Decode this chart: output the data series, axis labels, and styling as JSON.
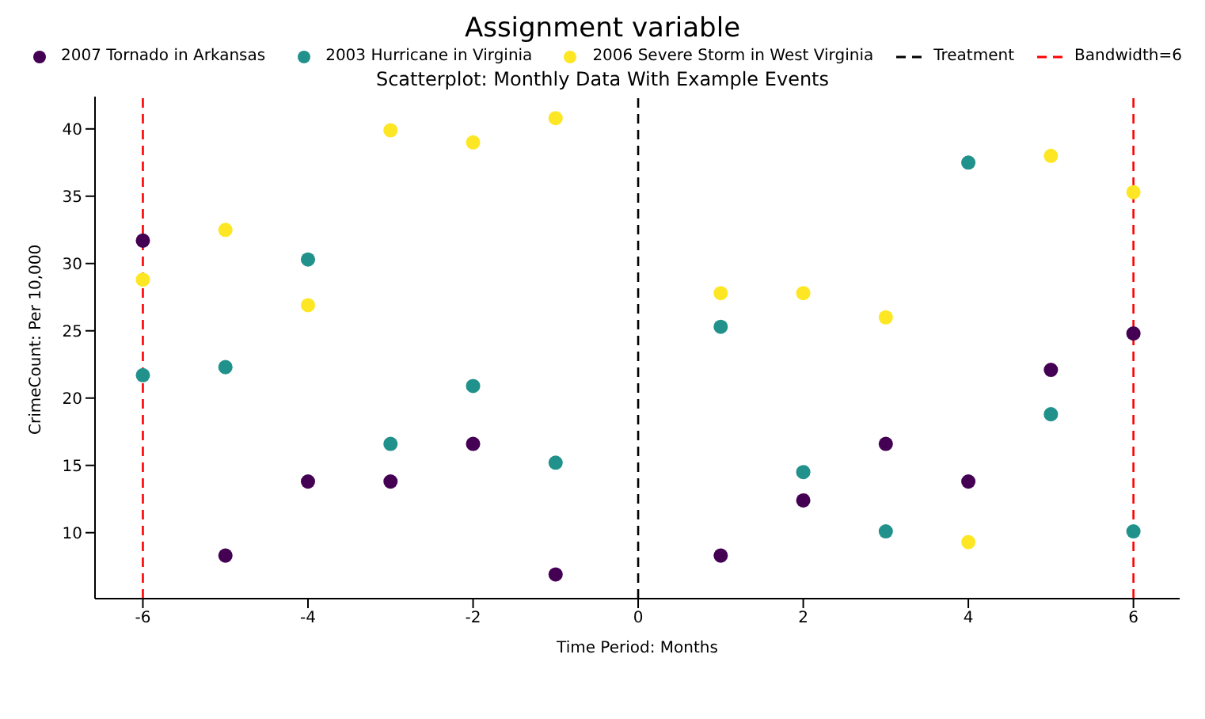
{
  "chart_data": {
    "type": "scatter",
    "title": "Assignment variable",
    "subtitle": "Scatterplot: Monthly Data With Example Events",
    "xlabel": "Time Period: Months",
    "ylabel": "CrimeCount: Per 10,000",
    "xlim": [
      -6.58,
      6.56
    ],
    "xticks": [
      -6,
      -4,
      -2,
      0,
      2,
      4,
      6
    ],
    "ylim": [
      5.1,
      42.4
    ],
    "yticks": [
      10,
      15,
      20,
      25,
      30,
      35,
      40
    ],
    "grid": false,
    "legend": "top",
    "marker": "circle",
    "x": [
      -6,
      -5,
      -4,
      -3,
      -2,
      -1,
      1,
      2,
      3,
      4,
      5,
      6
    ],
    "series": [
      {
        "name": "2007 Tornado in Arkansas",
        "color": "#440154",
        "values": [
          31.7,
          8.3,
          13.8,
          13.8,
          16.6,
          6.9,
          8.3,
          12.4,
          16.6,
          13.8,
          22.1,
          24.8
        ]
      },
      {
        "name": "2003 Hurricane in Virginia",
        "color": "#21918c",
        "values": [
          21.7,
          22.3,
          30.3,
          16.6,
          20.9,
          15.2,
          25.3,
          14.5,
          10.1,
          37.5,
          18.8,
          10.1
        ]
      },
      {
        "name": "2006 Severe Storm in West Virginia",
        "color": "#fde725",
        "values": [
          28.8,
          32.5,
          26.9,
          39.9,
          39.0,
          40.8,
          27.8,
          27.8,
          26.0,
          9.3,
          38.0,
          35.3
        ]
      }
    ],
    "ref_lines": [
      {
        "axis": "x",
        "value": 0,
        "label": "Treatment",
        "color": "#000000",
        "line_style": "dashed"
      },
      {
        "axis": "x",
        "value": -6,
        "color": "#ff0000",
        "line_style": "dashed"
      },
      {
        "axis": "x",
        "value": 6,
        "label": "Bandwidth=6",
        "color": "#ff0000",
        "line_style": "dashed"
      }
    ]
  }
}
